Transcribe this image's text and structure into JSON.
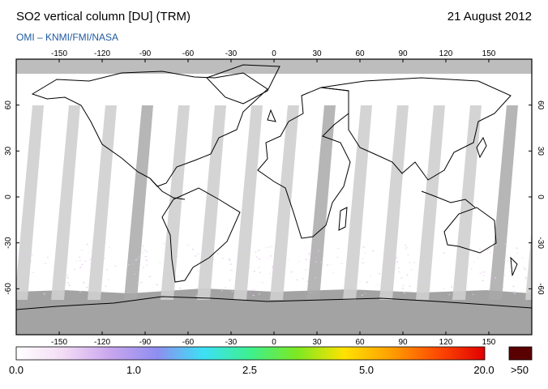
{
  "header": {
    "title": "SO2 vertical column [DU] (TRM)",
    "date": "21 August 2012",
    "credit": "OMI  –  KNMI/FMI/NASA"
  },
  "map": {
    "lon_ticks": [
      "-150",
      "-120",
      "-90",
      "-60",
      "-30",
      "0",
      "30",
      "60",
      "90",
      "120",
      "150"
    ],
    "lat_ticks": [
      "60",
      "30",
      "0",
      "-30",
      "-60"
    ],
    "colors": {
      "frame": "#000000",
      "coast": "#000000",
      "gap_stripe": "#cfcfcf",
      "dark_stripe": "#a9a9a9",
      "polar": "#bdbdbd",
      "antarctica": "#a3a3a3",
      "noise": "#e6c8ef"
    }
  },
  "colorbar": {
    "labels": [
      "0.0",
      "1.0",
      "2.5",
      "5.0",
      "20.0",
      ">50"
    ],
    "stops": [
      "#ffffff",
      "#f3dcf5",
      "#c9a6ee",
      "#8f8ef0",
      "#3de0f5",
      "#3ef08e",
      "#7de822",
      "#ffe200",
      "#ff9f00",
      "#ff4a00",
      "#e00000"
    ],
    "overflow_color": "#5a0000"
  }
}
